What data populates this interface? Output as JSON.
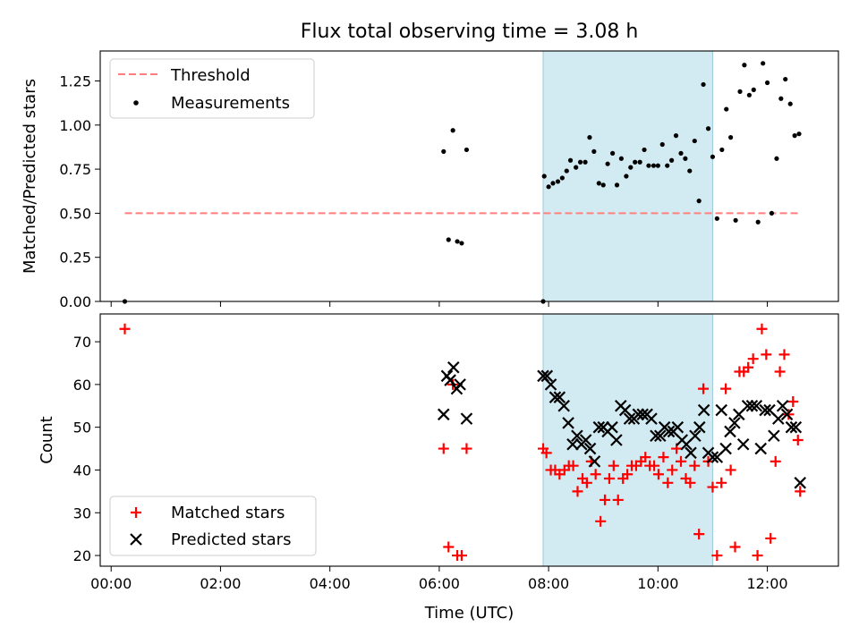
{
  "chart_data": [
    {
      "type": "scatter",
      "title": "Flux total observing time = 3.08 h",
      "xlabel": "",
      "ylabel": "Matched/Predicted stars",
      "xlim": [
        -0.2,
        13.3
      ],
      "ylim": [
        0.0,
        1.42
      ],
      "yticks": [
        0.0,
        0.25,
        0.5,
        0.75,
        1.0,
        1.25
      ],
      "ytick_labels": [
        "0.00",
        "0.25",
        "0.50",
        "0.75",
        "1.00",
        "1.25"
      ],
      "xticks": [
        0,
        2,
        4,
        6,
        8,
        10,
        12
      ],
      "shaded_interval": [
        7.9,
        11.0
      ],
      "legend_position": "upper-left",
      "series": [
        {
          "name": "Threshold",
          "kind": "dashed-line",
          "color": "#ff7f7f",
          "x": [
            0.25,
            12.6
          ],
          "y": [
            0.5,
            0.5
          ]
        },
        {
          "name": "Measurements",
          "kind": "points",
          "color": "#000000",
          "x": [
            0.25,
            6.08,
            6.17,
            6.25,
            6.33,
            6.41,
            6.5,
            7.9,
            7.92,
            8.0,
            8.08,
            8.17,
            8.25,
            8.33,
            8.4,
            8.5,
            8.58,
            8.67,
            8.75,
            8.83,
            8.92,
            9.0,
            9.08,
            9.17,
            9.25,
            9.33,
            9.42,
            9.5,
            9.58,
            9.67,
            9.75,
            9.83,
            9.92,
            10.0,
            10.08,
            10.17,
            10.25,
            10.33,
            10.42,
            10.5,
            10.58,
            10.67,
            10.75,
            10.83,
            10.92,
            11.0,
            11.08,
            11.17,
            11.25,
            11.33,
            11.42,
            11.5,
            11.58,
            11.67,
            11.75,
            11.83,
            11.92,
            12.0,
            12.08,
            12.17,
            12.25,
            12.33,
            12.42,
            12.5,
            12.58
          ],
          "y": [
            0.0,
            0.85,
            0.35,
            0.97,
            0.34,
            0.33,
            0.86,
            0.0,
            0.71,
            0.65,
            0.67,
            0.68,
            0.7,
            0.74,
            0.8,
            0.76,
            0.79,
            0.79,
            0.93,
            0.85,
            0.67,
            0.66,
            0.78,
            0.84,
            0.66,
            0.81,
            0.71,
            0.76,
            0.79,
            0.79,
            0.86,
            0.77,
            0.77,
            0.77,
            0.89,
            0.77,
            0.8,
            0.94,
            0.84,
            0.81,
            0.74,
            0.91,
            0.57,
            1.23,
            0.98,
            0.82,
            0.47,
            0.86,
            1.09,
            0.93,
            0.46,
            1.19,
            1.34,
            1.17,
            1.2,
            0.45,
            1.35,
            1.24,
            0.5,
            0.81,
            1.15,
            1.26,
            1.12,
            0.94,
            0.95
          ]
        }
      ]
    },
    {
      "type": "scatter",
      "title": "",
      "xlabel": "Time (UTC)",
      "ylabel": "Count",
      "xlim": [
        -0.2,
        13.3
      ],
      "ylim": [
        17.5,
        76.5
      ],
      "yticks": [
        20,
        30,
        40,
        50,
        60,
        70
      ],
      "ytick_labels": [
        "20",
        "30",
        "40",
        "50",
        "60",
        "70"
      ],
      "xticks": [
        0,
        2,
        4,
        6,
        8,
        10,
        12
      ],
      "xtick_labels": [
        "00:00",
        "02:00",
        "04:00",
        "06:00",
        "08:00",
        "10:00",
        "12:00"
      ],
      "shaded_interval": [
        7.9,
        11.0
      ],
      "legend_position": "lower-left",
      "series": [
        {
          "name": "Matched stars",
          "marker": "plus",
          "color": "#ff0000",
          "x": [
            0.25,
            6.08,
            6.17,
            6.25,
            6.33,
            6.41,
            6.5,
            7.9,
            7.96,
            8.04,
            8.12,
            8.2,
            8.29,
            8.37,
            8.45,
            8.53,
            8.62,
            8.7,
            8.78,
            8.86,
            8.95,
            9.03,
            9.11,
            9.19,
            9.27,
            9.36,
            9.44,
            9.52,
            9.6,
            9.69,
            9.77,
            9.85,
            9.93,
            10.01,
            10.1,
            10.18,
            10.26,
            10.34,
            10.42,
            10.51,
            10.59,
            10.67,
            10.75,
            10.83,
            10.92,
            11.0,
            11.08,
            11.16,
            11.24,
            11.33,
            11.41,
            11.49,
            11.57,
            11.65,
            11.74,
            11.82,
            11.9,
            11.98,
            12.06,
            12.15,
            12.23,
            12.31,
            12.39,
            12.47,
            12.56,
            12.6
          ],
          "y": [
            73,
            45,
            22,
            60,
            20,
            20,
            45,
            45,
            44,
            40,
            40,
            39,
            40,
            41,
            41,
            35,
            38,
            37,
            42,
            39,
            28,
            33,
            38,
            41,
            33,
            38,
            39,
            41,
            41,
            42,
            43,
            41,
            41,
            39,
            43,
            37,
            40,
            45,
            42,
            38,
            37,
            41,
            25,
            59,
            42,
            36,
            20,
            37,
            59,
            40,
            22,
            63,
            63,
            64,
            66,
            20,
            73,
            67,
            24,
            42,
            63,
            67,
            53,
            56,
            47,
            35
          ]
        },
        {
          "name": "Predicted stars",
          "marker": "x",
          "color": "#000000",
          "x": [
            6.08,
            6.14,
            6.2,
            6.26,
            6.32,
            6.38,
            6.5,
            7.9,
            7.97,
            8.04,
            8.12,
            8.2,
            8.28,
            8.36,
            8.44,
            8.52,
            8.6,
            8.68,
            8.76,
            8.84,
            8.92,
            9.0,
            9.08,
            9.16,
            9.24,
            9.32,
            9.4,
            9.48,
            9.56,
            9.64,
            9.72,
            9.8,
            9.88,
            9.96,
            10.04,
            10.12,
            10.2,
            10.28,
            10.36,
            10.44,
            10.52,
            10.6,
            10.68,
            10.76,
            10.84,
            10.92,
            11.0,
            11.08,
            11.16,
            11.24,
            11.32,
            11.4,
            11.48,
            11.56,
            11.64,
            11.72,
            11.8,
            11.88,
            11.96,
            12.04,
            12.12,
            12.2,
            12.28,
            12.36,
            12.44,
            12.52,
            12.6
          ],
          "y": [
            53,
            62,
            61,
            64,
            59,
            60,
            52,
            62,
            62,
            60,
            57,
            57,
            55,
            51,
            46,
            48,
            46,
            47,
            45,
            42,
            50,
            50,
            49,
            50,
            47,
            55,
            54,
            52,
            52,
            53,
            53,
            53,
            52,
            48,
            48,
            50,
            49,
            49,
            50,
            47,
            46,
            44,
            48,
            50,
            54,
            44,
            43,
            43,
            54,
            45,
            49,
            51,
            53,
            46,
            55,
            55,
            55,
            45,
            54,
            54,
            48,
            52,
            55,
            53,
            50,
            50,
            37
          ]
        }
      ]
    }
  ]
}
